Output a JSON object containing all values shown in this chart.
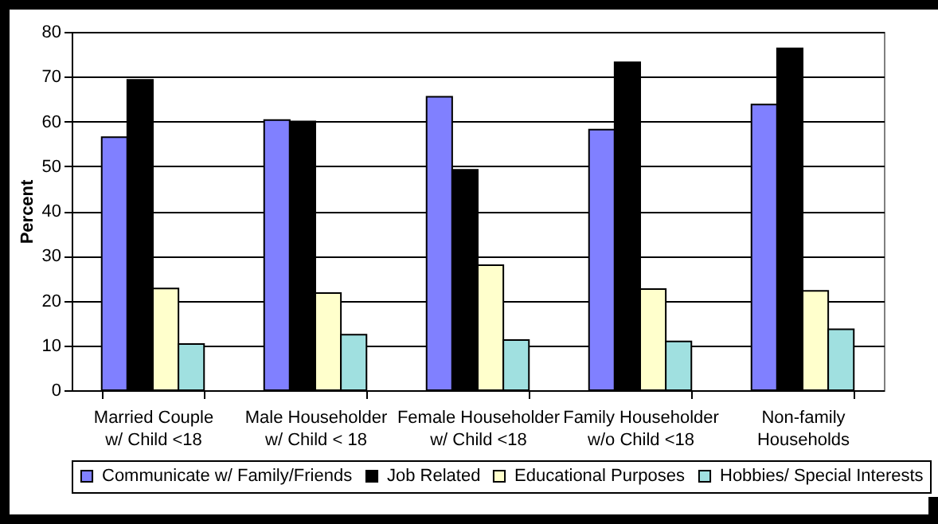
{
  "chart_data": {
    "type": "bar",
    "ylabel": "Percent",
    "categories": [
      "Married Couple w/ Child <18",
      "Male Householder w/ Child < 18",
      "Female Householder w/ Child <18",
      "Family Householder w/o Child <18",
      "Non-family Households"
    ],
    "series": [
      {
        "name": "Communicate w/ Family/Friends",
        "color": "#8080ff",
        "values": [
          56.5,
          60.3,
          65.5,
          58.2,
          63.8
        ]
      },
      {
        "name": "Job Related",
        "color": "#000000",
        "values": [
          69.3,
          60.0,
          49.2,
          73.2,
          76.3
        ]
      },
      {
        "name": "Educational Purposes",
        "color": "#ffffcc",
        "values": [
          22.7,
          21.7,
          27.9,
          22.6,
          22.2
        ]
      },
      {
        "name": "Hobbies/ Special Interests",
        "color": "#a0e0e0",
        "values": [
          10.3,
          12.4,
          11.2,
          10.9,
          13.6
        ]
      }
    ],
    "ylim": [
      0,
      80
    ],
    "yticks": [
      0,
      10,
      20,
      30,
      40,
      50,
      60,
      70,
      80
    ],
    "grid": "y",
    "legend": "bottom"
  }
}
